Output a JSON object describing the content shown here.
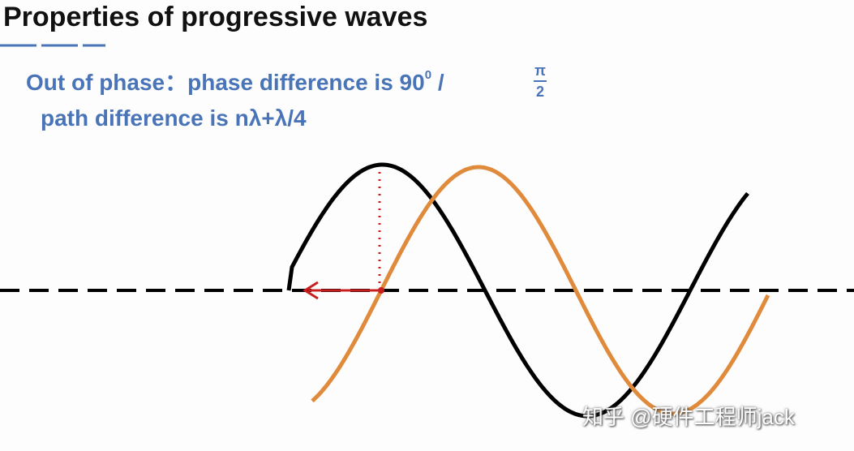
{
  "header": {
    "title": "Properties of progressive waves"
  },
  "body": {
    "line1": {
      "text": "Out of phase：phase difference is 90",
      "superscript": "0",
      "separator": "/",
      "numerator": "π",
      "denominator": "2"
    },
    "line2": "path difference is nλ+λ/4"
  },
  "watermark": "知乎 @硬件工程师jack"
}
